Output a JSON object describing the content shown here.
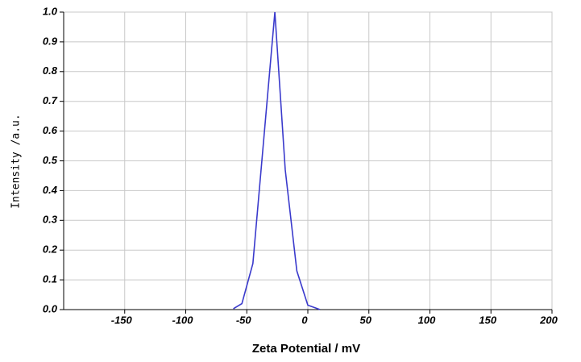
{
  "chart_data": {
    "type": "line",
    "x_label": "Zeta Potential / mV",
    "y_label": "Intensity /a.u.",
    "series": [
      {
        "color": "#3a3acc",
        "x": [
          -61,
          -54,
          -45,
          -27,
          -18.5,
          -9,
          0,
          10
        ],
        "values": [
          0.003,
          0.02,
          0.155,
          1.0,
          0.47,
          0.13,
          0.015,
          0.0
        ]
      }
    ],
    "xlim": [
      -200,
      200
    ],
    "xticks": [
      -150,
      -100,
      -50,
      0,
      50,
      100,
      150,
      200
    ],
    "ylim": [
      0,
      1
    ],
    "yticks": [
      {
        "value": 0,
        "label": "0.0"
      },
      0.1,
      0.2,
      0.3,
      0.4,
      0.5,
      0.6,
      0.7,
      0.8,
      0.9,
      {
        "value": 1,
        "label": "1.0"
      }
    ],
    "grid": true
  }
}
